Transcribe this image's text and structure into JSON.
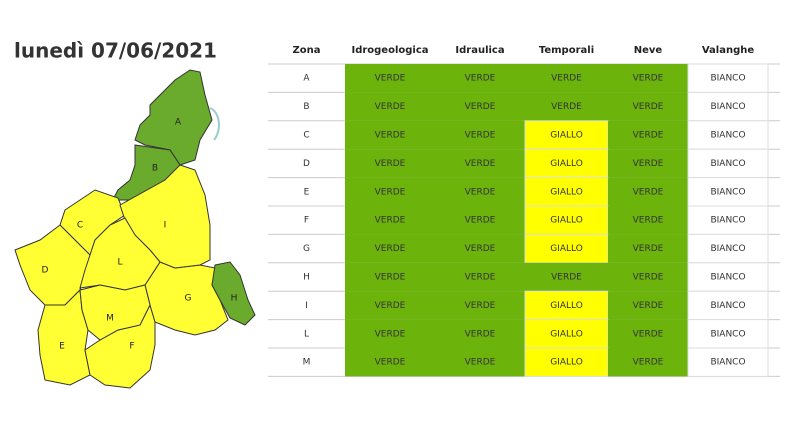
{
  "header": {
    "title": "lunedì 07/06/2021"
  },
  "table": {
    "columns": [
      "Zona",
      "Idrogeologica",
      "Idraulica",
      "Temporali",
      "Neve",
      "Valanghe"
    ],
    "rows": [
      [
        "A",
        "VERDE",
        "VERDE",
        "VERDE",
        "VERDE",
        "BIANCO"
      ],
      [
        "B",
        "VERDE",
        "VERDE",
        "VERDE",
        "VERDE",
        "BIANCO"
      ],
      [
        "C",
        "VERDE",
        "VERDE",
        "GIALLO",
        "VERDE",
        "BIANCO"
      ],
      [
        "D",
        "VERDE",
        "VERDE",
        "GIALLO",
        "VERDE",
        "BIANCO"
      ],
      [
        "E",
        "VERDE",
        "VERDE",
        "GIALLO",
        "VERDE",
        "BIANCO"
      ],
      [
        "F",
        "VERDE",
        "VERDE",
        "GIALLO",
        "VERDE",
        "BIANCO"
      ],
      [
        "G",
        "VERDE",
        "VERDE",
        "GIALLO",
        "VERDE",
        "BIANCO"
      ],
      [
        "H",
        "VERDE",
        "VERDE",
        "VERDE",
        "VERDE",
        "BIANCO"
      ],
      [
        "I",
        "VERDE",
        "VERDE",
        "GIALLO",
        "VERDE",
        "BIANCO"
      ],
      [
        "L",
        "VERDE",
        "VERDE",
        "GIALLO",
        "VERDE",
        "BIANCO"
      ],
      [
        "M",
        "VERDE",
        "VERDE",
        "GIALLO",
        "VERDE",
        "BIANCO"
      ]
    ],
    "cell_colors": {
      "VERDE": "#6cb30c",
      "GIALLO": "#ffff00",
      "BIANCO": "#ffffff"
    }
  },
  "map": {
    "zones": [
      {
        "label": "A",
        "color": "#6aab2e"
      },
      {
        "label": "B",
        "color": "#6aab2e"
      },
      {
        "label": "C",
        "color": "#ffff33"
      },
      {
        "label": "D",
        "color": "#ffff33"
      },
      {
        "label": "E",
        "color": "#ffff33"
      },
      {
        "label": "F",
        "color": "#ffff33"
      },
      {
        "label": "G",
        "color": "#ffff33"
      },
      {
        "label": "H",
        "color": "#6aab2e"
      },
      {
        "label": "I",
        "color": "#ffff33"
      },
      {
        "label": "L",
        "color": "#ffff33"
      },
      {
        "label": "M",
        "color": "#ffff33"
      }
    ]
  }
}
